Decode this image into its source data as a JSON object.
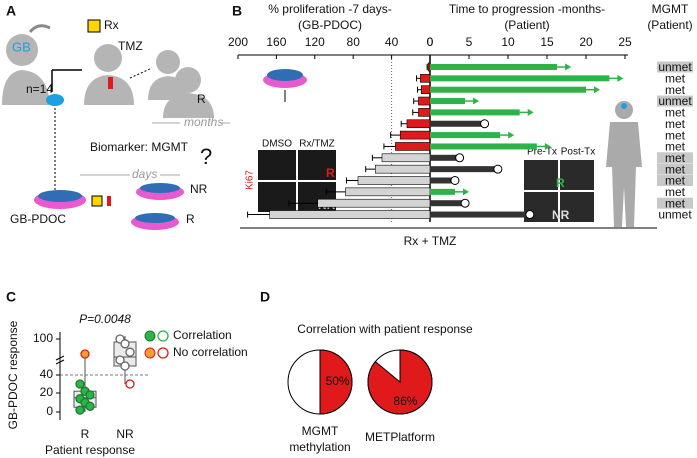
{
  "panel_a": {
    "label": "A",
    "patient": "GB",
    "cohort": "n=14",
    "radiation": "Rx",
    "drug": "TMZ",
    "patient_nr": "NR",
    "patient_r": "R",
    "months": "months",
    "biomarker": "Biomarker: MGMT",
    "days": "days",
    "model": "GB-PDOC",
    "dish_nr": "NR",
    "dish_r": "R",
    "question": "?"
  },
  "panel_b": {
    "label": "B",
    "left_title": "% proliferation -7 days-",
    "left_subtitle": "(GB-PDOC)",
    "right_title": "Time to progression -months-",
    "right_subtitle": "(Patient)",
    "mgmt_title": "MGMT",
    "mgmt_subtitle": "(Patient)",
    "treatment": "Rx + TMZ",
    "inset_cells": {
      "dmso": "DMSO",
      "rxtmz": "Rx/TMZ",
      "marker": "Ki67",
      "r": "R",
      "nr": "NR"
    },
    "inset_scans": {
      "pre": "Pre-Tx",
      "post": "Post-Tx",
      "r": "R",
      "nr": "NR"
    }
  },
  "panel_d": {
    "label": "D",
    "title": "Correlation with patient response"
  },
  "chart_data": [
    {
      "type": "mirrored-bar",
      "left": {
        "xlim": [
          0,
          200
        ],
        "xticks": [
          200,
          160,
          120,
          80,
          40,
          0
        ],
        "reference_line": 40,
        "values": [
          2,
          10,
          9,
          12,
          12,
          24,
          31,
          36,
          50,
          57,
          75,
          88,
          117,
          167
        ],
        "errors": [
          1,
          4,
          4,
          5,
          6,
          6,
          10,
          12,
          10,
          10,
          12,
          20,
          30,
          23
        ],
        "colors": [
          "#e0191b",
          "#e0191b",
          "#e0191b",
          "#e0191b",
          "#e0191b",
          "#e0191b",
          "#e0191b",
          "#e0191b",
          "#d4d4d4",
          "#d4d4d4",
          "#d4d4d4",
          "#d4d4d4",
          "#d4d4d4",
          "#d4d4d4"
        ]
      },
      "right": {
        "xlim": [
          0,
          25
        ],
        "xticks": [
          0,
          5,
          10,
          15,
          20,
          25
        ],
        "values": [
          16.3,
          23,
          20,
          4.5,
          11.5,
          7,
          9,
          13.7,
          3.8,
          8.7,
          3.2,
          3.2,
          4.5,
          12.8
        ],
        "colors": [
          "#2db34a",
          "#2db34a",
          "#2db34a",
          "#2db34a",
          "#2db34a",
          "#333333",
          "#2db34a",
          "#2db34a",
          "#333333",
          "#333333",
          "#333333",
          "#2db34a",
          "#333333",
          "#333333"
        ],
        "ongoing": [
          true,
          true,
          true,
          true,
          true,
          false,
          true,
          true,
          false,
          false,
          false,
          true,
          false,
          false
        ]
      },
      "mgmt": [
        "unmet",
        "met",
        "met",
        "unmet",
        "met",
        "met",
        "met",
        "met",
        "met",
        "met",
        "met",
        "met",
        "met",
        "unmet"
      ],
      "mgmt_highlight": [
        true,
        false,
        false,
        true,
        false,
        false,
        false,
        false,
        true,
        true,
        true,
        false,
        true,
        false
      ]
    },
    {
      "type": "box",
      "label": "C",
      "annotation": "P=0.0048",
      "ylabel": "GB-PDOC response",
      "xlabel": "Patient response",
      "categories": [
        "R",
        "NR"
      ],
      "yticks": [
        0,
        20,
        40,
        100
      ],
      "reference_line": 40,
      "legend": [
        {
          "name": "Correlation",
          "color": "#2db34a"
        },
        {
          "name": "No correlation",
          "color": "#e0191b"
        }
      ],
      "boxes": [
        {
          "min": 0,
          "q1": 5,
          "median": 15,
          "q3": 22,
          "max": 75
        },
        {
          "min": 30,
          "q1": 55,
          "median": 70,
          "q3": 95,
          "max": 105
        }
      ],
      "points": [
        {
          "values": [
            30,
            22,
            18,
            14,
            10,
            6,
            2,
            75
          ],
          "correlation": [
            true,
            true,
            true,
            true,
            true,
            true,
            true,
            false
          ]
        },
        {
          "values": [
            100,
            92,
            78,
            65,
            55,
            30
          ],
          "correlation": [
            true,
            true,
            true,
            true,
            true,
            false
          ]
        }
      ]
    },
    {
      "type": "pie",
      "title": [
        "MGMT",
        "methylation"
      ],
      "values": [
        50
      ],
      "value_labels": [
        "50%"
      ],
      "color": "#e0191b"
    },
    {
      "type": "pie",
      "title": [
        "METPlatform"
      ],
      "values": [
        86
      ],
      "value_labels": [
        "86%"
      ],
      "color": "#e0191b"
    }
  ]
}
